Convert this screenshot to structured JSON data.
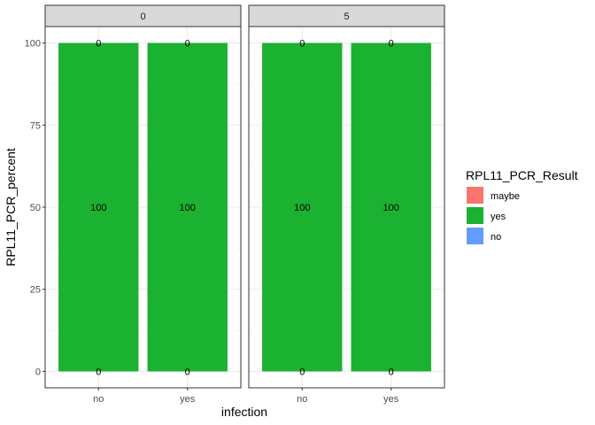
{
  "chart_data": {
    "type": "bar",
    "stacked": true,
    "facet_variable": "facet",
    "facets": [
      {
        "label": "0",
        "categories": [
          "no",
          "yes"
        ],
        "series": [
          {
            "name": "maybe",
            "values": [
              0,
              0
            ]
          },
          {
            "name": "yes",
            "values": [
              100,
              100
            ]
          },
          {
            "name": "no",
            "values": [
              0,
              0
            ]
          }
        ],
        "data_labels": [
          {
            "category": "no",
            "y": 100,
            "text": "0"
          },
          {
            "category": "no",
            "y": 50,
            "text": "100"
          },
          {
            "category": "no",
            "y": 0,
            "text": "0"
          },
          {
            "category": "yes",
            "y": 100,
            "text": "0"
          },
          {
            "category": "yes",
            "y": 50,
            "text": "100"
          },
          {
            "category": "yes",
            "y": 0,
            "text": "0"
          }
        ]
      },
      {
        "label": "5",
        "categories": [
          "no",
          "yes"
        ],
        "series": [
          {
            "name": "maybe",
            "values": [
              0,
              0
            ]
          },
          {
            "name": "yes",
            "values": [
              100,
              100
            ]
          },
          {
            "name": "no",
            "values": [
              0,
              0
            ]
          }
        ],
        "data_labels": [
          {
            "category": "no",
            "y": 100,
            "text": "0"
          },
          {
            "category": "no",
            "y": 50,
            "text": "100"
          },
          {
            "category": "no",
            "y": 0,
            "text": "0"
          },
          {
            "category": "yes",
            "y": 100,
            "text": "0"
          },
          {
            "category": "yes",
            "y": 50,
            "text": "100"
          },
          {
            "category": "yes",
            "y": 0,
            "text": "0"
          }
        ]
      }
    ],
    "xlabel": "infection",
    "ylabel": "RPL11_PCR_percent",
    "ylim": [
      0,
      100
    ],
    "yticks": [
      0,
      25,
      50,
      75,
      100
    ],
    "grid": true,
    "legend": {
      "title": "RPL11_PCR_Result",
      "placement": "right",
      "entries": [
        {
          "name": "maybe",
          "color": "#F8766D"
        },
        {
          "name": "yes",
          "color": "#1BB131"
        },
        {
          "name": "no",
          "color": "#619CFF"
        }
      ]
    },
    "colors": {
      "maybe": "#F8766D",
      "yes": "#1BB131",
      "no": "#619CFF",
      "strip_bg": "#D9D9D9",
      "grid_major": "#EBEBEB",
      "grid_minor": "#F5F5F5",
      "panel_border": "#333333"
    }
  }
}
